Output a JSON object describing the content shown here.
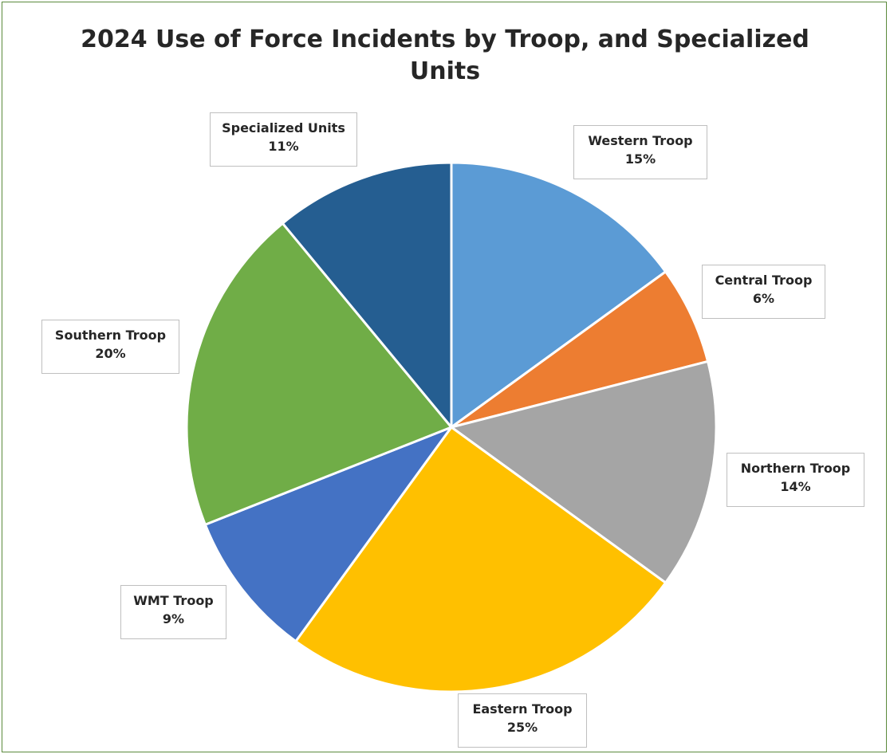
{
  "chart_data": {
    "type": "pie",
    "title_line1": "2024 Use of Force Incidents by Troop, and Specialized",
    "title_line2": "Units",
    "slices": [
      {
        "name": "Western Troop",
        "value": 15,
        "label": "15%",
        "color": "#5b9bd5"
      },
      {
        "name": "Central Troop",
        "value": 6,
        "label": "6%",
        "color": "#ed7d31"
      },
      {
        "name": "Northern Troop",
        "value": 14,
        "label": "14%",
        "color": "#a5a5a5"
      },
      {
        "name": "Eastern Troop",
        "value": 25,
        "label": "25%",
        "color": "#ffc000"
      },
      {
        "name": "WMT Troop",
        "value": 9,
        "label": "9%",
        "color": "#4472c4"
      },
      {
        "name": "Southern Troop",
        "value": 20,
        "label": "20%",
        "color": "#70ad47"
      },
      {
        "name": "Specialized Units",
        "value": 11,
        "label": "11%",
        "color": "#255e91"
      }
    ],
    "start": "12 o'clock",
    "direction": "clockwise",
    "legend": "none",
    "data_labels": "outside with callout boxes"
  }
}
